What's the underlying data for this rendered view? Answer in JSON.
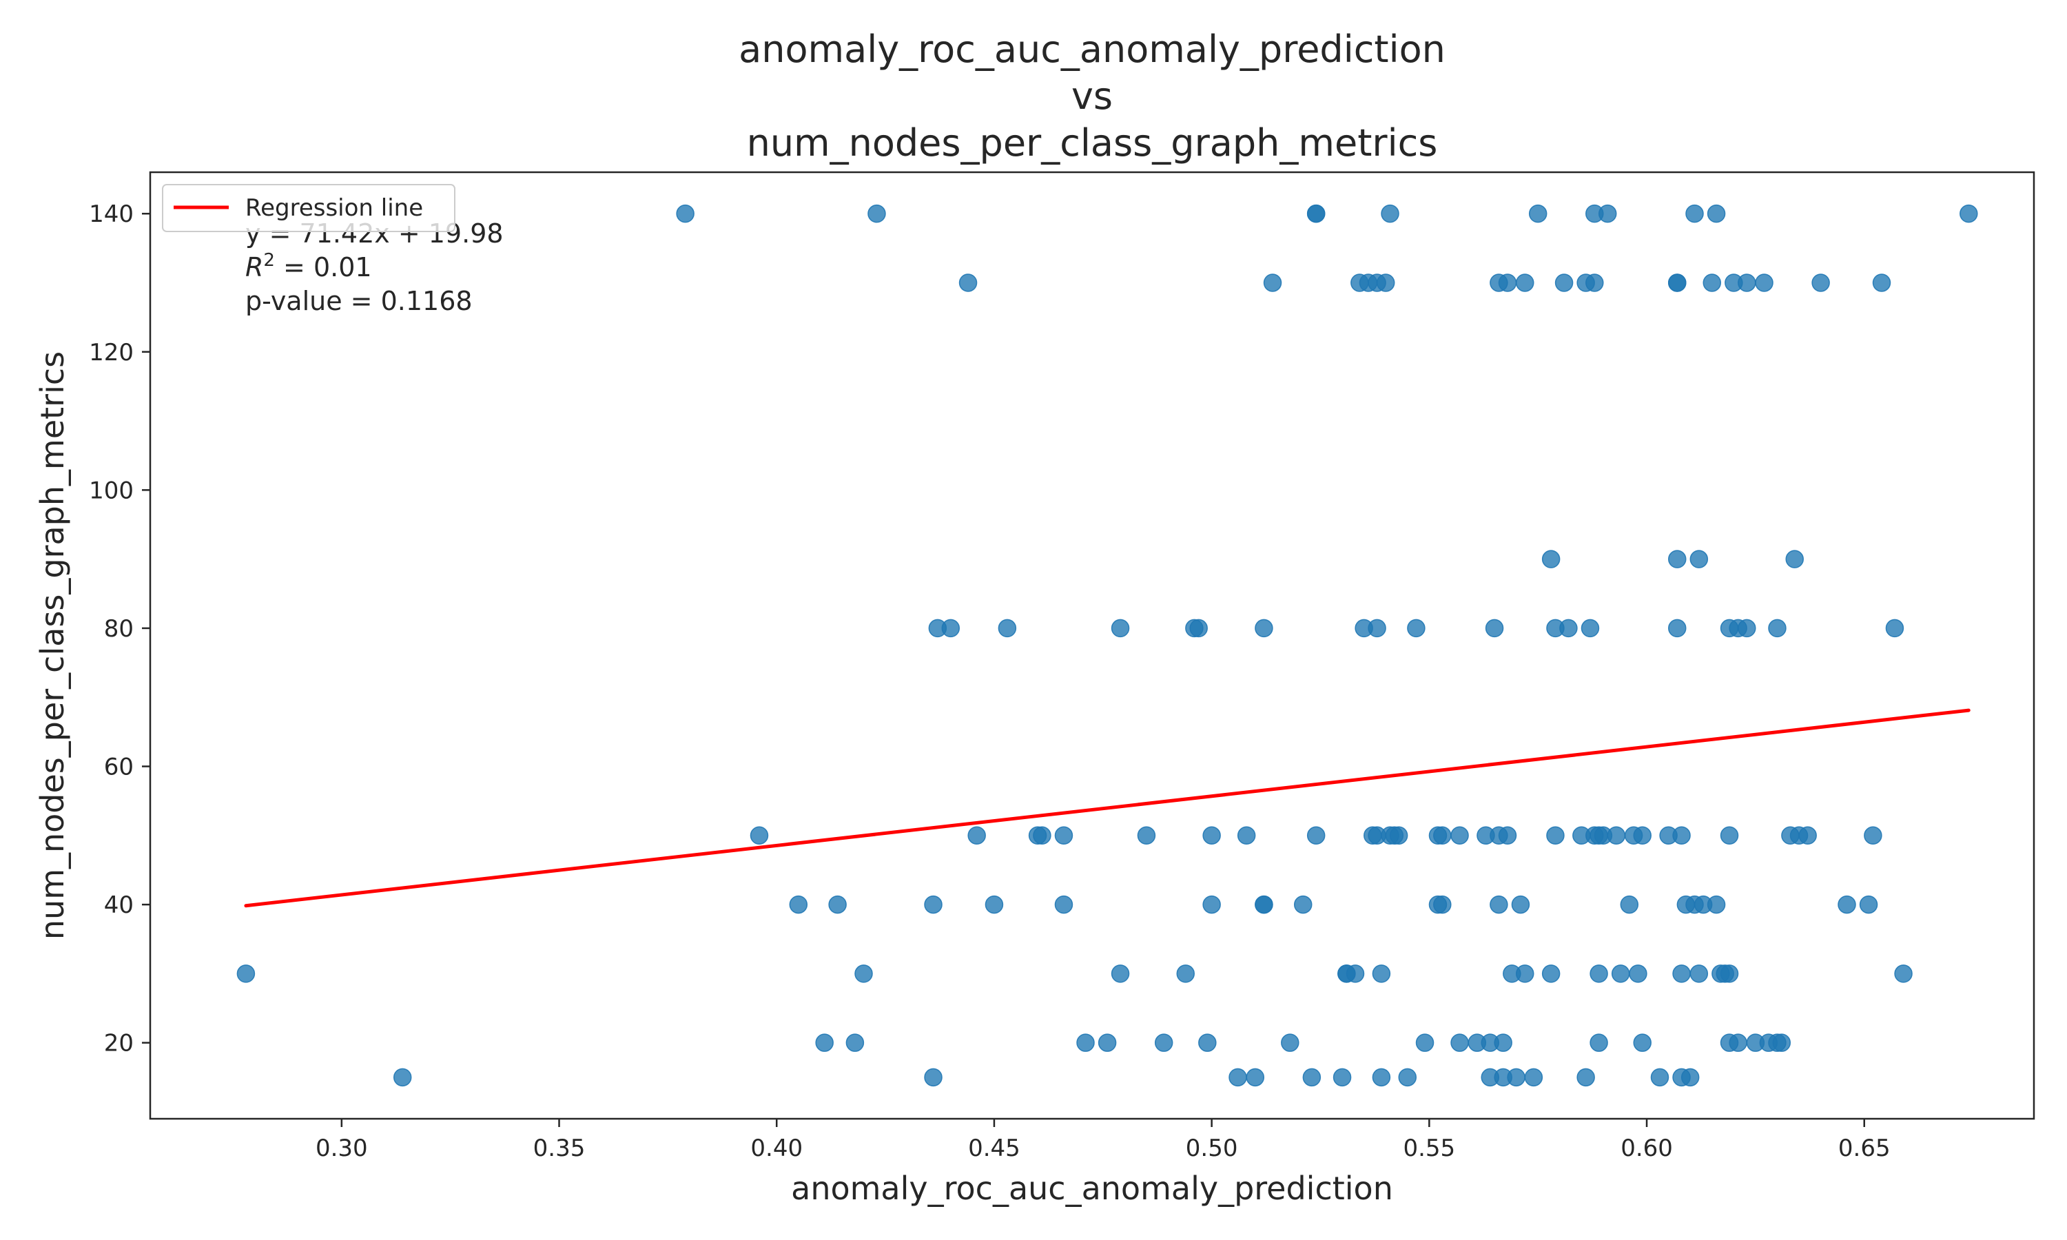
{
  "chart_data": {
    "type": "scatter",
    "title_lines": [
      "anomaly_roc_auc_anomaly_prediction",
      "vs",
      "num_nodes_per_class_graph_metrics"
    ],
    "xlabel": "anomaly_roc_auc_anomaly_prediction",
    "ylabel": "num_nodes_per_class_graph_metrics",
    "xlim": [
      0.256,
      0.689
    ],
    "ylim": [
      9,
      146
    ],
    "x_ticks": [
      0.3,
      0.35,
      0.4,
      0.45,
      0.5,
      0.55,
      0.6,
      0.65
    ],
    "x_tick_labels": [
      "0.30",
      "0.35",
      "0.40",
      "0.45",
      "0.50",
      "0.55",
      "0.60",
      "0.65"
    ],
    "y_ticks": [
      20,
      40,
      60,
      80,
      100,
      120,
      140
    ],
    "y_tick_labels": [
      "20",
      "40",
      "60",
      "80",
      "100",
      "120",
      "140"
    ],
    "colors": {
      "points": "#1f77b4",
      "regression": "#ff0000"
    },
    "legend": {
      "position": "top-left",
      "entries": [
        "Regression line"
      ]
    },
    "annotation": {
      "equation": "y = 71.42x + 19.98",
      "r2_label": "R",
      "r2_sup": "2",
      "r2_value": " = 0.01",
      "pvalue": "p-value = 0.1168"
    },
    "regression": {
      "slope": 71.42,
      "intercept": 19.98,
      "x_range": [
        0.278,
        0.674
      ]
    },
    "points": [
      [
        0.379,
        140
      ],
      [
        0.423,
        140
      ],
      [
        0.524,
        140
      ],
      [
        0.524,
        140
      ],
      [
        0.541,
        140
      ],
      [
        0.575,
        140
      ],
      [
        0.588,
        140
      ],
      [
        0.591,
        140
      ],
      [
        0.611,
        140
      ],
      [
        0.616,
        140
      ],
      [
        0.674,
        140
      ],
      [
        0.444,
        130
      ],
      [
        0.514,
        130
      ],
      [
        0.534,
        130
      ],
      [
        0.536,
        130
      ],
      [
        0.538,
        130
      ],
      [
        0.54,
        130
      ],
      [
        0.566,
        130
      ],
      [
        0.568,
        130
      ],
      [
        0.572,
        130
      ],
      [
        0.581,
        130
      ],
      [
        0.586,
        130
      ],
      [
        0.588,
        130
      ],
      [
        0.607,
        130
      ],
      [
        0.607,
        130
      ],
      [
        0.615,
        130
      ],
      [
        0.62,
        130
      ],
      [
        0.623,
        130
      ],
      [
        0.627,
        130
      ],
      [
        0.64,
        130
      ],
      [
        0.654,
        130
      ],
      [
        0.578,
        90
      ],
      [
        0.607,
        90
      ],
      [
        0.612,
        90
      ],
      [
        0.634,
        90
      ],
      [
        0.437,
        80
      ],
      [
        0.44,
        80
      ],
      [
        0.453,
        80
      ],
      [
        0.479,
        80
      ],
      [
        0.496,
        80
      ],
      [
        0.497,
        80
      ],
      [
        0.512,
        80
      ],
      [
        0.535,
        80
      ],
      [
        0.538,
        80
      ],
      [
        0.547,
        80
      ],
      [
        0.565,
        80
      ],
      [
        0.579,
        80
      ],
      [
        0.582,
        80
      ],
      [
        0.587,
        80
      ],
      [
        0.607,
        80
      ],
      [
        0.619,
        80
      ],
      [
        0.621,
        80
      ],
      [
        0.623,
        80
      ],
      [
        0.63,
        80
      ],
      [
        0.657,
        80
      ],
      [
        0.396,
        50
      ],
      [
        0.446,
        50
      ],
      [
        0.46,
        50
      ],
      [
        0.461,
        50
      ],
      [
        0.466,
        50
      ],
      [
        0.485,
        50
      ],
      [
        0.5,
        50
      ],
      [
        0.508,
        50
      ],
      [
        0.524,
        50
      ],
      [
        0.537,
        50
      ],
      [
        0.538,
        50
      ],
      [
        0.541,
        50
      ],
      [
        0.542,
        50
      ],
      [
        0.543,
        50
      ],
      [
        0.552,
        50
      ],
      [
        0.553,
        50
      ],
      [
        0.557,
        50
      ],
      [
        0.563,
        50
      ],
      [
        0.566,
        50
      ],
      [
        0.568,
        50
      ],
      [
        0.579,
        50
      ],
      [
        0.585,
        50
      ],
      [
        0.588,
        50
      ],
      [
        0.589,
        50
      ],
      [
        0.59,
        50
      ],
      [
        0.593,
        50
      ],
      [
        0.597,
        50
      ],
      [
        0.599,
        50
      ],
      [
        0.605,
        50
      ],
      [
        0.608,
        50
      ],
      [
        0.619,
        50
      ],
      [
        0.633,
        50
      ],
      [
        0.635,
        50
      ],
      [
        0.637,
        50
      ],
      [
        0.652,
        50
      ],
      [
        0.405,
        40
      ],
      [
        0.414,
        40
      ],
      [
        0.436,
        40
      ],
      [
        0.45,
        40
      ],
      [
        0.466,
        40
      ],
      [
        0.5,
        40
      ],
      [
        0.512,
        40
      ],
      [
        0.512,
        40
      ],
      [
        0.521,
        40
      ],
      [
        0.552,
        40
      ],
      [
        0.553,
        40
      ],
      [
        0.566,
        40
      ],
      [
        0.571,
        40
      ],
      [
        0.596,
        40
      ],
      [
        0.609,
        40
      ],
      [
        0.611,
        40
      ],
      [
        0.613,
        40
      ],
      [
        0.616,
        40
      ],
      [
        0.646,
        40
      ],
      [
        0.651,
        40
      ],
      [
        0.278,
        30
      ],
      [
        0.42,
        30
      ],
      [
        0.479,
        30
      ],
      [
        0.494,
        30
      ],
      [
        0.531,
        30
      ],
      [
        0.531,
        30
      ],
      [
        0.533,
        30
      ],
      [
        0.539,
        30
      ],
      [
        0.569,
        30
      ],
      [
        0.572,
        30
      ],
      [
        0.578,
        30
      ],
      [
        0.589,
        30
      ],
      [
        0.594,
        30
      ],
      [
        0.598,
        30
      ],
      [
        0.608,
        30
      ],
      [
        0.612,
        30
      ],
      [
        0.617,
        30
      ],
      [
        0.618,
        30
      ],
      [
        0.619,
        30
      ],
      [
        0.659,
        30
      ],
      [
        0.411,
        20
      ],
      [
        0.418,
        20
      ],
      [
        0.471,
        20
      ],
      [
        0.476,
        20
      ],
      [
        0.489,
        20
      ],
      [
        0.499,
        20
      ],
      [
        0.518,
        20
      ],
      [
        0.549,
        20
      ],
      [
        0.557,
        20
      ],
      [
        0.561,
        20
      ],
      [
        0.564,
        20
      ],
      [
        0.567,
        20
      ],
      [
        0.589,
        20
      ],
      [
        0.599,
        20
      ],
      [
        0.619,
        20
      ],
      [
        0.621,
        20
      ],
      [
        0.625,
        20
      ],
      [
        0.628,
        20
      ],
      [
        0.63,
        20
      ],
      [
        0.631,
        20
      ],
      [
        0.314,
        15
      ],
      [
        0.436,
        15
      ],
      [
        0.506,
        15
      ],
      [
        0.51,
        15
      ],
      [
        0.523,
        15
      ],
      [
        0.53,
        15
      ],
      [
        0.539,
        15
      ],
      [
        0.545,
        15
      ],
      [
        0.564,
        15
      ],
      [
        0.567,
        15
      ],
      [
        0.57,
        15
      ],
      [
        0.574,
        15
      ],
      [
        0.586,
        15
      ],
      [
        0.603,
        15
      ],
      [
        0.608,
        15
      ],
      [
        0.61,
        15
      ]
    ]
  }
}
